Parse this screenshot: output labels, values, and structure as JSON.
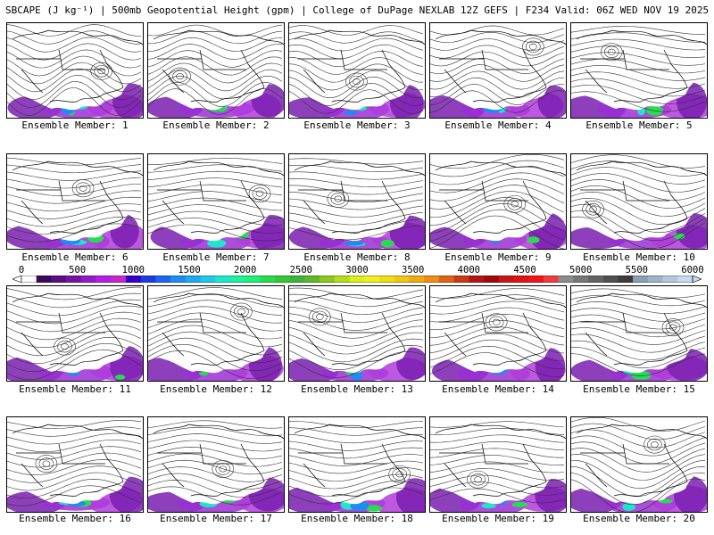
{
  "header": {
    "title": "SBCAPE (J kg⁻¹) | 500mb Geopotential Height (gpm) | College of DuPage NEXLAB 12Z GEFS | F234 Valid: 06Z WED NOV 19 2025"
  },
  "panels": [
    {
      "caption": "Ensemble Member: 1"
    },
    {
      "caption": "Ensemble Member: 2"
    },
    {
      "caption": "Ensemble Member: 3"
    },
    {
      "caption": "Ensemble Member: 4"
    },
    {
      "caption": "Ensemble Member: 5"
    },
    {
      "caption": "Ensemble Member: 6"
    },
    {
      "caption": "Ensemble Member: 7"
    },
    {
      "caption": "Ensemble Member: 8"
    },
    {
      "caption": "Ensemble Member: 9"
    },
    {
      "caption": "Ensemble Member: 10"
    },
    {
      "caption": "Ensemble Member: 11"
    },
    {
      "caption": "Ensemble Member: 12"
    },
    {
      "caption": "Ensemble Member: 13"
    },
    {
      "caption": "Ensemble Member: 14"
    },
    {
      "caption": "Ensemble Member: 15"
    },
    {
      "caption": "Ensemble Member: 16"
    },
    {
      "caption": "Ensemble Member: 17"
    },
    {
      "caption": "Ensemble Member: 18"
    },
    {
      "caption": "Ensemble Member: 19"
    },
    {
      "caption": "Ensemble Member: 20"
    }
  ],
  "colorbar": {
    "labels": [
      "0",
      "500",
      "1000",
      "1500",
      "2000",
      "2500",
      "3000",
      "3500",
      "4000",
      "4500",
      "5000",
      "5500",
      "6000"
    ],
    "colors": [
      "#ffffff",
      "#3c0a5a",
      "#5a0f82",
      "#7814a5",
      "#9619c8",
      "#b41ee6",
      "#c828c8",
      "#3200c8",
      "#1e3cdc",
      "#1e64f0",
      "#1e8cf0",
      "#1eaaf0",
      "#1ec8e6",
      "#1ee6c8",
      "#1ef0a0",
      "#1ef078",
      "#28dc50",
      "#32c832",
      "#3cb43c",
      "#64b428",
      "#8cc81e",
      "#b4dc1e",
      "#dcf01e",
      "#f0f01e",
      "#f0dc14",
      "#f0c814",
      "#f0aa14",
      "#f08c14",
      "#dc6414",
      "#c83c14",
      "#b41414",
      "#a00a0a",
      "#c81414",
      "#dc1414",
      "#f01414",
      "#f03c3c",
      "#8c8c8c",
      "#787878",
      "#646464",
      "#505050",
      "#3c3c3c",
      "#8ca0b4",
      "#a0b4c8",
      "#b4c8dc",
      "#c8dcf0"
    ]
  }
}
